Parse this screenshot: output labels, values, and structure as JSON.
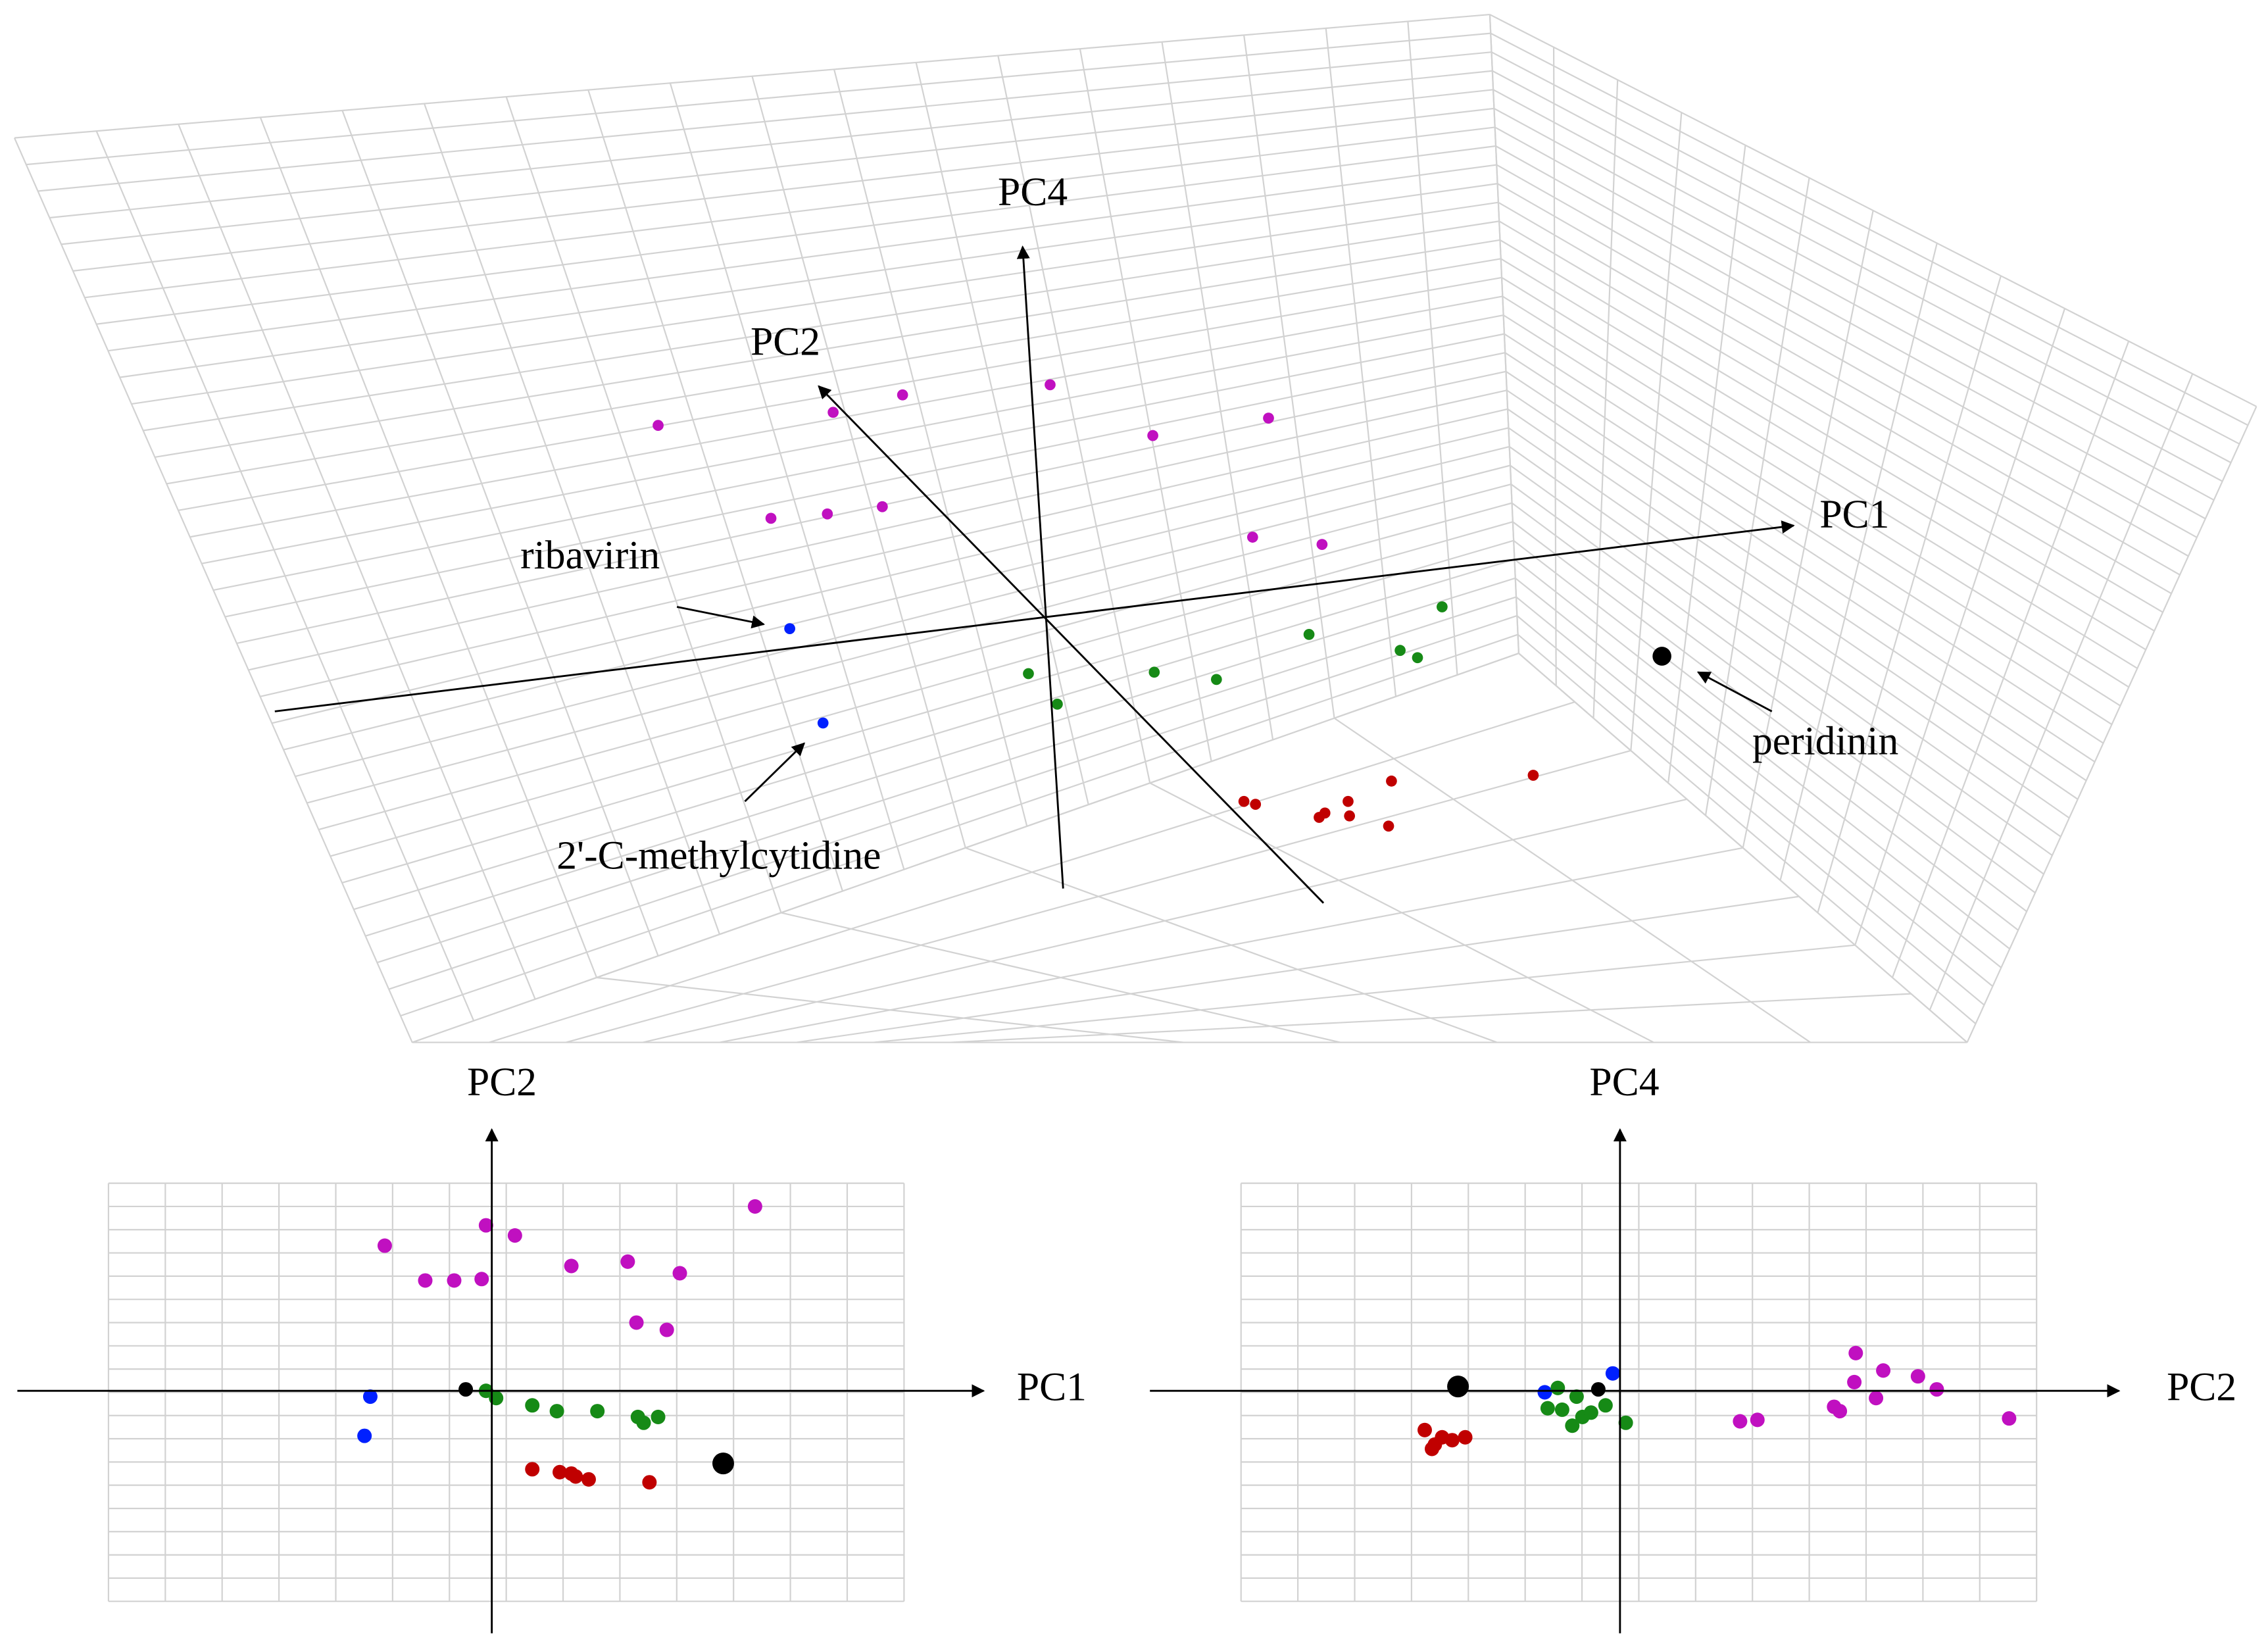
{
  "main_plot": {
    "axes": [
      "PC1",
      "PC2",
      "PC4"
    ],
    "annotations": [
      "ribavirin",
      "2'-C-methylcytidine",
      "peridinin"
    ]
  },
  "left_plot": {
    "x_axis": "PC1",
    "y_axis": "PC2"
  },
  "right_plot": {
    "x_axis": "PC2",
    "y_axis": "PC4"
  }
}
